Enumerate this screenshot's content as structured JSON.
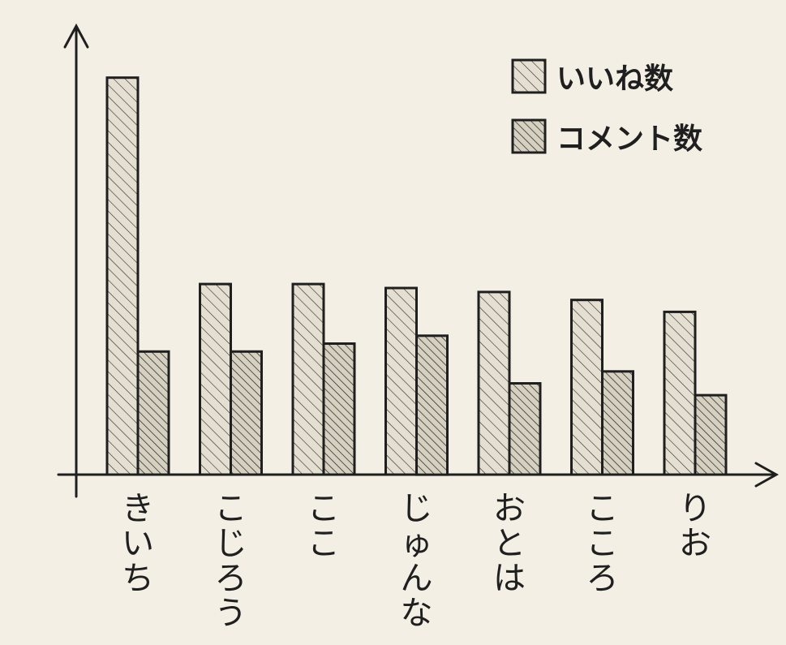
{
  "chart_data": {
    "type": "bar",
    "title": "",
    "xlabel": "",
    "ylabel": "",
    "categories": [
      "きいち",
      "こじろう",
      "ここ",
      "じゅんな",
      "おとは",
      "こころ",
      "りお"
    ],
    "series": [
      {
        "name": "いいね数",
        "values": [
          100,
          48,
          48,
          47,
          46,
          44,
          41
        ]
      },
      {
        "name": "コメント数",
        "values": [
          31,
          31,
          33,
          35,
          23,
          26,
          20
        ]
      }
    ],
    "ylim": [
      0,
      112
    ],
    "grid": false,
    "legend": "top-right",
    "colors": {
      "background": "#f3efe4",
      "ink": "#1f1f1f",
      "series1_fill": "#e4dfd0",
      "series2_fill": "#d6d0c0"
    }
  }
}
